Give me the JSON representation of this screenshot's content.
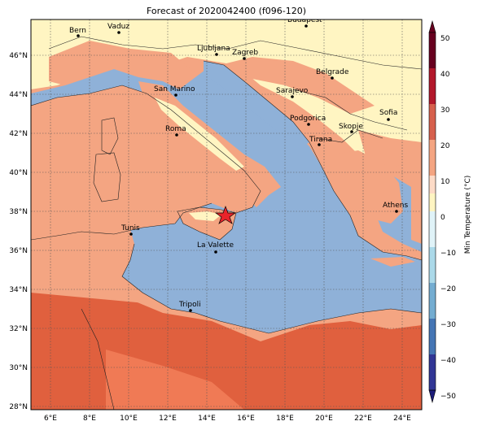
{
  "title": "Forecast of 2020042400 (f096-120)",
  "colorbar": {
    "label": "Min Temperature (°C)",
    "ticks": [
      "50",
      "40",
      "30",
      "20",
      "10",
      "0",
      "−10",
      "−20",
      "−30",
      "−40",
      "−50"
    ],
    "colors": [
      "#67001f",
      "#b2182b",
      "#d6604d",
      "#f4a582",
      "#fddbc7",
      "#fff5c2",
      "#e0f3f8",
      "#abd9e9",
      "#74add1",
      "#4575b4",
      "#313695",
      "#1c1c7a"
    ]
  },
  "map": {
    "lon_ticks": [
      "6°E",
      "8°E",
      "10°E",
      "12°E",
      "14°E",
      "16°E",
      "18°E",
      "20°E",
      "22°E",
      "24°E"
    ],
    "lat_ticks": [
      "46°N",
      "44°N",
      "42°N",
      "40°N",
      "38°N",
      "36°N",
      "34°N",
      "32°N",
      "30°N",
      "28°N"
    ],
    "sea_color": "#8fb1d8",
    "cities": [
      {
        "name": "Bern"
      },
      {
        "name": "Vaduz"
      },
      {
        "name": "Budapest"
      },
      {
        "name": "Ljubljana"
      },
      {
        "name": "Zagreb"
      },
      {
        "name": "Belgrade"
      },
      {
        "name": "San Marino"
      },
      {
        "name": "Sarajevo"
      },
      {
        "name": "Sofia"
      },
      {
        "name": "Podgorica"
      },
      {
        "name": "Skopje"
      },
      {
        "name": "Roma"
      },
      {
        "name": "Tirana"
      },
      {
        "name": "Athens"
      },
      {
        "name": "Tunis"
      },
      {
        "name": "La Valette"
      },
      {
        "name": "Tripoli"
      }
    ],
    "marker": "star"
  }
}
